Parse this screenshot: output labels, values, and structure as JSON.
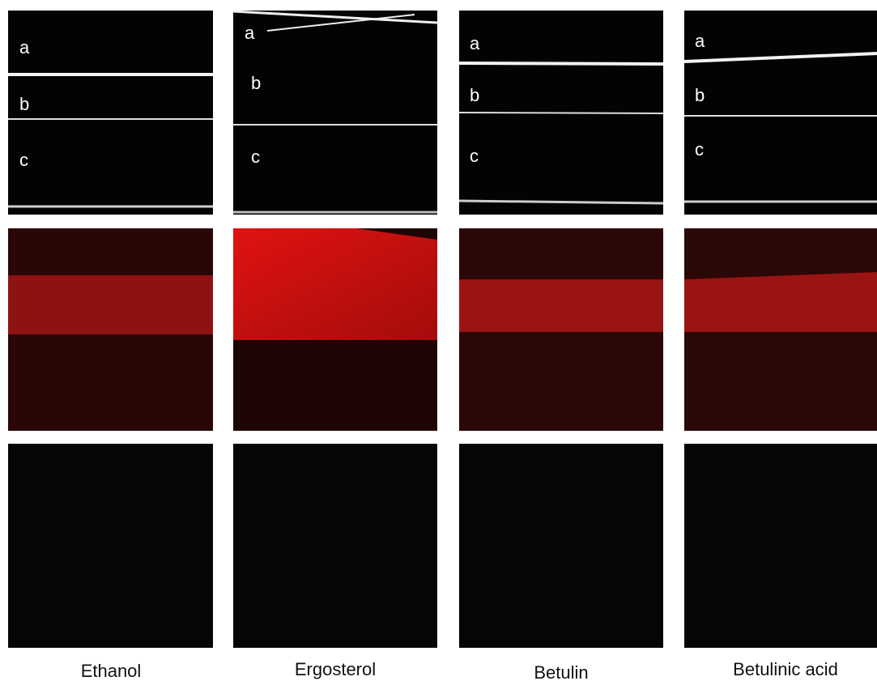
{
  "columns": [
    {
      "label": "Ethanol",
      "regions": [
        "a",
        "b",
        "c"
      ]
    },
    {
      "label": "Ergosterol",
      "regions": [
        "a",
        "b",
        "c"
      ]
    },
    {
      "label": "Betulin",
      "regions": [
        "a",
        "b",
        "c"
      ]
    },
    {
      "label": "Betulinic acid",
      "regions": [
        "a",
        "b",
        "c"
      ]
    }
  ]
}
